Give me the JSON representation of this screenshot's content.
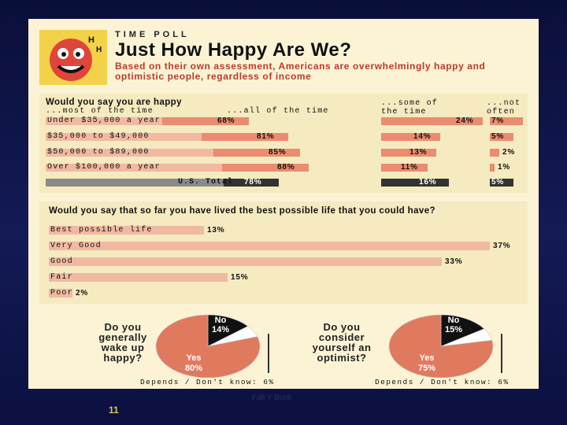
{
  "header": {
    "poll_label": "TIME POLL",
    "title": "Just How Happy Are We?",
    "subtitle": "Based on their own assessment, Americans are overwhelmingly happy and optimistic people, regardless of income"
  },
  "colors": {
    "light_bar": "#f1b9a2",
    "mid_bar": "#ea8c6f",
    "pie_main": "#e07a5f",
    "pie_dark": "#111111",
    "pie_white": "#ffffff"
  },
  "chart_data": [
    {
      "type": "bar",
      "title": "Would you say you are happy",
      "column_headers": [
        "...most of the time",
        "...all of the time",
        "...some of the time",
        "...not often"
      ],
      "categories": [
        "Under $35,000 a year",
        "$35,000 to $49,000",
        "$50,000 to $89,000",
        "Over $100,000 a year",
        "U.S. Total"
      ],
      "series": [
        {
          "name": "most of the time / all of the time",
          "values": [
            68,
            81,
            85,
            88,
            78
          ],
          "labels": [
            "68%",
            "81%",
            "85%",
            "88%",
            "78%"
          ]
        },
        {
          "name": "some of the time",
          "values": [
            24,
            14,
            13,
            11,
            16
          ],
          "labels": [
            "24%",
            "14%",
            "13%",
            "11%",
            "16%"
          ]
        },
        {
          "name": "not often",
          "values": [
            7,
            5,
            2,
            1,
            5
          ],
          "labels": [
            "7%",
            "5%",
            "2%",
            "1%",
            "5%"
          ]
        }
      ]
    },
    {
      "type": "bar",
      "title": "Would you say that so far you have lived the best possible life that you could have?",
      "categories": [
        "Best possible life",
        "Very Good",
        "Good",
        "Fair",
        "Poor"
      ],
      "values": [
        13,
        37,
        33,
        15,
        2
      ],
      "labels": [
        "13%",
        "37%",
        "33%",
        "15%",
        "2%"
      ]
    },
    {
      "type": "pie",
      "title": "Do you generally wake up happy?",
      "slices": [
        {
          "name": "Yes",
          "value": 80,
          "label": "80%"
        },
        {
          "name": "No",
          "value": 14,
          "label": "14%"
        },
        {
          "name": "Depends / Don't know",
          "value": 6,
          "label": "6%"
        }
      ],
      "footnote": "Depends / Don't know: 6%"
    },
    {
      "type": "pie",
      "title": "Do you consider yourself an optimist?",
      "slices": [
        {
          "name": "Yes",
          "value": 75,
          "label": "75%"
        },
        {
          "name": "No",
          "value": 15,
          "label": "15%"
        },
        {
          "name": "Depends / Don't know",
          "value": 6,
          "label": "6%"
        }
      ],
      "footnote": "Depends / Don't know: 6%"
    }
  ],
  "footer": {
    "source": "Fall Y Bunk",
    "page_number": "11"
  }
}
